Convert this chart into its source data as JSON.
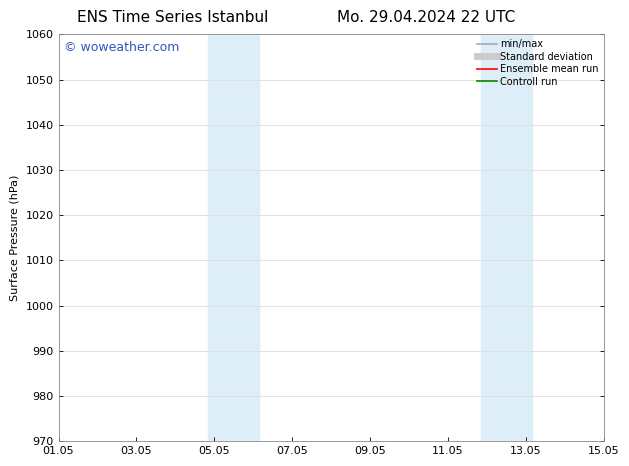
{
  "title_left": "ENS Time Series Istanbul",
  "title_right": "Mo. 29.04.2024 22 UTC",
  "ylabel": "Surface Pressure (hPa)",
  "ylim": [
    970,
    1060
  ],
  "yticks": [
    970,
    980,
    990,
    1000,
    1010,
    1020,
    1030,
    1040,
    1050,
    1060
  ],
  "xlim_num": [
    0,
    14
  ],
  "xtick_labels": [
    "01.05",
    "03.05",
    "05.05",
    "07.05",
    "09.05",
    "11.05",
    "13.05",
    "15.05"
  ],
  "xtick_positions": [
    0,
    2,
    4,
    6,
    8,
    10,
    12,
    14
  ],
  "shaded_bands": [
    {
      "x_start": 3.85,
      "x_end": 5.15
    },
    {
      "x_start": 10.85,
      "x_end": 12.15
    }
  ],
  "shaded_color": "#ddeef8",
  "watermark": "© woweather.com",
  "watermark_color": "#3355bb",
  "legend_items": [
    {
      "label": "min/max",
      "color": "#aaaaaa",
      "lw": 1.2,
      "style": "solid"
    },
    {
      "label": "Standard deviation",
      "color": "#cccccc",
      "lw": 5,
      "style": "solid"
    },
    {
      "label": "Ensemble mean run",
      "color": "#ff0000",
      "lw": 1.2,
      "style": "solid"
    },
    {
      "label": "Controll run",
      "color": "#008800",
      "lw": 1.2,
      "style": "solid"
    }
  ],
  "bg_color": "#ffffff",
  "axes_bg_color": "#ffffff",
  "grid_color": "#dddddd",
  "title_fontsize": 11,
  "label_fontsize": 8,
  "tick_fontsize": 8,
  "watermark_fontsize": 9,
  "legend_fontsize": 7
}
